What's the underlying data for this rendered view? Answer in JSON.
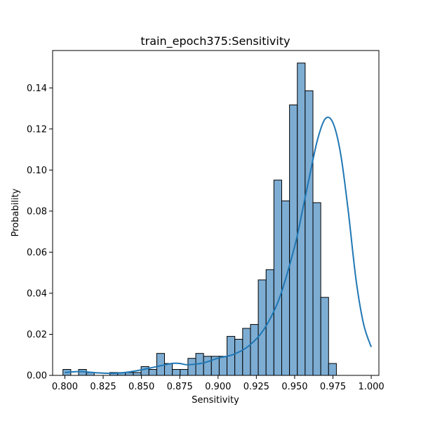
{
  "chart_data": {
    "type": "bar",
    "subtype": "histogram",
    "title": "train_epoch375:Sensitivity",
    "xlabel": "Sensitivity",
    "ylabel": "Probability",
    "xlim": [
      0.792,
      1.005
    ],
    "ylim": [
      0,
      0.1582
    ],
    "x_ticks": [
      "0.800",
      "0.825",
      "0.850",
      "0.875",
      "0.900",
      "0.925",
      "0.950",
      "0.975",
      "1.000"
    ],
    "x_tick_values": [
      0.8,
      0.825,
      0.85,
      0.875,
      0.9,
      0.925,
      0.95,
      0.975,
      1.0
    ],
    "y_ticks": [
      "0.00",
      "0.02",
      "0.04",
      "0.06",
      "0.08",
      "0.10",
      "0.12",
      "0.14"
    ],
    "y_tick_values": [
      0,
      0.02,
      0.04,
      0.06,
      0.08,
      0.1,
      0.12,
      0.14
    ],
    "grid": false,
    "bin_start": 0.79875,
    "bin_width": 0.0051,
    "values": [
      0.0029,
      0.0,
      0.0029,
      0.0014,
      0.0,
      0.0,
      0.0014,
      0.0014,
      0.0014,
      0.0014,
      0.0043,
      0.0029,
      0.0107,
      0.0058,
      0.0029,
      0.0029,
      0.0083,
      0.0107,
      0.0093,
      0.0093,
      0.0093,
      0.019,
      0.0176,
      0.0229,
      0.0248,
      0.0465,
      0.0515,
      0.0951,
      0.085,
      0.1317,
      0.1521,
      0.1386,
      0.0841,
      0.038,
      0.0058
    ],
    "kde": {
      "x": [
        0.8,
        0.81,
        0.82,
        0.83,
        0.84,
        0.85,
        0.86,
        0.87,
        0.875,
        0.88,
        0.89,
        0.9,
        0.91,
        0.92,
        0.93,
        0.94,
        0.95,
        0.955,
        0.96,
        0.965,
        0.97,
        0.975,
        0.98,
        0.985,
        0.99,
        0.995,
        1.0
      ],
      "y": [
        0.0014,
        0.0019,
        0.0013,
        0.001,
        0.0015,
        0.0027,
        0.0043,
        0.0058,
        0.0058,
        0.0052,
        0.006,
        0.0084,
        0.0102,
        0.0143,
        0.0225,
        0.0375,
        0.0628,
        0.08,
        0.098,
        0.115,
        0.125,
        0.123,
        0.108,
        0.08,
        0.047,
        0.025,
        0.0138
      ]
    },
    "colors": {
      "bar_fill": "#7eadd3",
      "kde_line": "#1f77b4"
    }
  }
}
